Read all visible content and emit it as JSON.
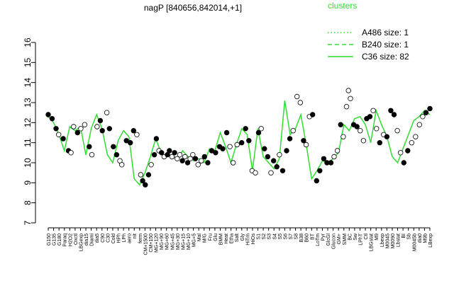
{
  "chart_data": {
    "type": "scatter",
    "title": "nagP [840656,842014,+1]",
    "xlabel": "",
    "ylabel": "",
    "ylim": [
      7,
      16
    ],
    "yticks": [
      7,
      8,
      9,
      10,
      11,
      12,
      13,
      14,
      15,
      16
    ],
    "legend": {
      "title": "clusters",
      "placement": "top-right",
      "entries": [
        {
          "label": "A486 size: 1",
          "style": "dotted",
          "color": "#33dd33"
        },
        {
          "label": "B240 size: 1",
          "style": "dashed",
          "color": "#33dd33"
        },
        {
          "label": "C36 size: 82",
          "style": "solid",
          "color": "#33dd33"
        }
      ]
    },
    "x_tick_labels": [
      "G150",
      "G135",
      "G180",
      "Paraq",
      "H2O2",
      "Oxctl",
      "LBGexp",
      "dia15",
      "Diami",
      "dia5",
      "C90",
      "C30",
      "Cold",
      "HPh",
      "LPh",
      "aero",
      "nit",
      "ferm",
      "CM+1500",
      "CM+150",
      "MG+120",
      "MG+90",
      "MG+60",
      "MG+45",
      "MG+30",
      "MG+15",
      "MG+10",
      "MG+5",
      "Mal",
      "M/G",
      "Fru",
      "Glu",
      "BMM",
      "Heat",
      "Etha",
      "Salt",
      "Gly",
      "HiTm",
      "HiOs",
      "S1",
      "S2",
      "S3",
      "S4",
      "S5",
      "S6",
      "S7",
      "S8",
      "B38",
      "B60",
      "BT",
      "LoTm",
      "Pyr",
      "GlcGl",
      "Glucon",
      "GM+",
      "SMM",
      "BC",
      "Sw",
      "LPhT",
      "Ctl",
      "LBGstat",
      "M9",
      "Lbexp",
      "M0045",
      "M0090",
      "Lbstat",
      "BI",
      "Sb",
      "M0045b",
      "dia0",
      "M9b",
      "LBexp"
    ],
    "series_colors": {
      "points": "#000000",
      "line": "#33dd33"
    },
    "series": [
      {
        "name": "C36 size: 82",
        "values": [
          12.3,
          12.0,
          11.4,
          10.6,
          11.8,
          11.6,
          11.8,
          10.4,
          11.7,
          12.4,
          11.7,
          10.4,
          10.0,
          11.1,
          11.6,
          11.3,
          9.2,
          8.9,
          9.5,
          10.3,
          11.2,
          10.5,
          10.3,
          10.4,
          10.2,
          10.6,
          10.3,
          10.1,
          10.2,
          10.0,
          10.7,
          10.6,
          11.5,
          10.8,
          10.0,
          10.9,
          11.7,
          11.4,
          9.6,
          11.7,
          10.3,
          10.0,
          9.7,
          10.2,
          13.1,
          11.4,
          11.7,
          12.4,
          10.9,
          9.2,
          9.6,
          10.1,
          10.0,
          10.2,
          10.5,
          11.9,
          11.6,
          12.2,
          12.3,
          11.9,
          11.0,
          12.6,
          11.9,
          11.3,
          10.3,
          10.0,
          10.7,
          11.4,
          12.1,
          12.3,
          12.6,
          12.4
        ]
      },
      {
        "name": "points",
        "points": [
          [
            0,
            12.4
          ],
          [
            0.6,
            12.2
          ],
          [
            1.2,
            11.7
          ],
          [
            1.6,
            11.4
          ],
          [
            2.3,
            11.2
          ],
          [
            3.1,
            10.6
          ],
          [
            3.5,
            10.5
          ],
          [
            3.9,
            11.8
          ],
          [
            4.5,
            11.5
          ],
          [
            5.0,
            11.7
          ],
          [
            5.6,
            11.9
          ],
          [
            6.3,
            10.8
          ],
          [
            6.7,
            10.4
          ],
          [
            7.5,
            11.8
          ],
          [
            8.0,
            12.1
          ],
          [
            8.3,
            11.6
          ],
          [
            9.0,
            12.5
          ],
          [
            9.4,
            11.7
          ],
          [
            10.0,
            10.8
          ],
          [
            10.5,
            10.4
          ],
          [
            11.0,
            10.1
          ],
          [
            11.3,
            9.9
          ],
          [
            12.0,
            11.1
          ],
          [
            12.6,
            11.0
          ],
          [
            13.1,
            11.6
          ],
          [
            13.6,
            11.4
          ],
          [
            14.2,
            9.4
          ],
          [
            14.5,
            9.1
          ],
          [
            14.9,
            8.9
          ],
          [
            15.4,
            9.4
          ],
          [
            15.8,
            9.9
          ],
          [
            16.3,
            10.4
          ],
          [
            16.6,
            11.2
          ],
          [
            17.0,
            10.6
          ],
          [
            17.4,
            10.5
          ],
          [
            17.8,
            10.3
          ],
          [
            18.3,
            10.4
          ],
          [
            18.6,
            10.6
          ],
          [
            19.0,
            10.3
          ],
          [
            19.4,
            10.5
          ],
          [
            19.8,
            10.2
          ],
          [
            20.2,
            10.4
          ],
          [
            20.6,
            10.1
          ],
          [
            21.0,
            10.3
          ],
          [
            21.4,
            10.0
          ],
          [
            21.8,
            10.2
          ],
          [
            22.2,
            10.4
          ],
          [
            22.6,
            10.2
          ],
          [
            23.0,
            9.9
          ],
          [
            23.5,
            10.1
          ],
          [
            24.0,
            10.3
          ],
          [
            24.5,
            10.0
          ],
          [
            25.1,
            10.6
          ],
          [
            25.7,
            10.5
          ],
          [
            26.3,
            10.8
          ],
          [
            26.8,
            10.7
          ],
          [
            27.4,
            11.5
          ],
          [
            27.9,
            10.8
          ],
          [
            28.4,
            10.0
          ],
          [
            29.0,
            10.9
          ],
          [
            29.7,
            11.0
          ],
          [
            30.3,
            11.7
          ],
          [
            30.8,
            11.1
          ],
          [
            31.3,
            9.6
          ],
          [
            31.8,
            9.5
          ],
          [
            32.3,
            11.5
          ],
          [
            32.7,
            11.7
          ],
          [
            33.2,
            10.7
          ],
          [
            33.7,
            10.3
          ],
          [
            34.2,
            9.5
          ],
          [
            34.6,
            10.1
          ],
          [
            35.1,
            9.8
          ],
          [
            35.5,
            10.4
          ],
          [
            36.0,
            9.6
          ],
          [
            36.6,
            10.6
          ],
          [
            37.1,
            11.2
          ],
          [
            37.6,
            11.6
          ],
          [
            38.2,
            13.3
          ],
          [
            38.7,
            13.0
          ],
          [
            39.2,
            11.1
          ],
          [
            39.6,
            10.9
          ],
          [
            40.1,
            12.3
          ],
          [
            40.6,
            12.4
          ],
          [
            41.2,
            9.1
          ],
          [
            41.7,
            9.6
          ],
          [
            42.3,
            10.2
          ],
          [
            42.8,
            10.0
          ],
          [
            43.4,
            10.0
          ],
          [
            43.9,
            10.3
          ],
          [
            44.4,
            10.6
          ],
          [
            44.9,
            11.9
          ],
          [
            45.3,
            11.3
          ],
          [
            45.8,
            12.8
          ],
          [
            46.1,
            13.6
          ],
          [
            46.4,
            13.2
          ],
          [
            46.9,
            11.9
          ],
          [
            47.4,
            11.8
          ],
          [
            47.9,
            11.6
          ],
          [
            48.4,
            11.1
          ],
          [
            48.9,
            12.2
          ],
          [
            49.4,
            12.3
          ],
          [
            49.9,
            12.6
          ],
          [
            50.4,
            11.7
          ],
          [
            50.9,
            11.0
          ],
          [
            51.5,
            11.4
          ],
          [
            52.0,
            11.3
          ],
          [
            52.6,
            12.6
          ],
          [
            53.1,
            12.4
          ],
          [
            53.6,
            11.6
          ],
          [
            54.1,
            10.5
          ],
          [
            54.6,
            10.0
          ],
          [
            55.2,
            10.6
          ],
          [
            55.8,
            11.0
          ],
          [
            56.4,
            11.3
          ],
          [
            57.0,
            11.9
          ],
          [
            57.5,
            12.3
          ],
          [
            58.0,
            12.5
          ],
          [
            58.6,
            12.7
          ]
        ]
      }
    ]
  }
}
